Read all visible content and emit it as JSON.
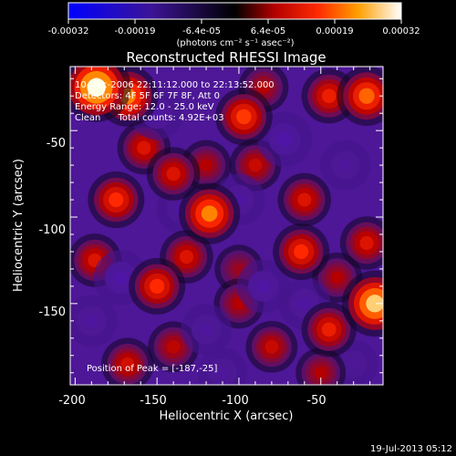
{
  "colorbar": {
    "tick_labels": [
      "-0.00032",
      "-0.00019",
      "-6.4e-05",
      "6.4e-05",
      "0.00019",
      "0.00032"
    ],
    "unit_label": "(photons cm⁻² s⁻¹ asec⁻²)",
    "range": [
      -0.00032,
      0.00032
    ]
  },
  "chart_data": {
    "type": "heatmap",
    "title": "Reconstructed RHESSI Image",
    "xlabel": "Heliocentric X (arcsec)",
    "ylabel": "Heliocentric Y (arcsec)",
    "xlim": [
      -203,
      -12
    ],
    "ylim": [
      -197,
      -13
    ],
    "x_ticks": [
      -200,
      -150,
      -100,
      -50
    ],
    "y_ticks": [
      -150,
      -100,
      -50
    ],
    "annotations": [
      "10-Dec-2006 22:11:12.000 to 22:13:52.000",
      "Detectors: 4F 5F 6F 7F 8F, Att 0",
      "Energy Range: 12.0 - 25.0 keV",
      "Clean      Total counts: 4.92E+03"
    ],
    "peak_label": "Position of Peak = [-187,-25]",
    "peak": [
      -187,
      -25
    ],
    "blobs": [
      {
        "x": -187,
        "y": -25,
        "v": 0.00032
      },
      {
        "x": -168,
        "y": -30,
        "v": 0.00022
      },
      {
        "x": -158,
        "y": -60,
        "v": 0.00012
      },
      {
        "x": -175,
        "y": -90,
        "v": 0.00016
      },
      {
        "x": -140,
        "y": -75,
        "v": 0.00012
      },
      {
        "x": -120,
        "y": -70,
        "v": 8e-05
      },
      {
        "x": -97,
        "y": -42,
        "v": 0.00017
      },
      {
        "x": -90,
        "y": -70,
        "v": 0.0001
      },
      {
        "x": -45,
        "y": -30,
        "v": 0.00014
      },
      {
        "x": -22,
        "y": -30,
        "v": 0.0002
      },
      {
        "x": -60,
        "y": -90,
        "v": 0.00012
      },
      {
        "x": -62,
        "y": -120,
        "v": 0.00016
      },
      {
        "x": -40,
        "y": -135,
        "v": 8e-05
      },
      {
        "x": -118,
        "y": -98,
        "v": 0.00022
      },
      {
        "x": -132,
        "y": -123,
        "v": 0.00012
      },
      {
        "x": -188,
        "y": -125,
        "v": 0.00012
      },
      {
        "x": -150,
        "y": -140,
        "v": 0.00016
      },
      {
        "x": -100,
        "y": -150,
        "v": 8e-05
      },
      {
        "x": -100,
        "y": -130,
        "v": 6e-05
      },
      {
        "x": -168,
        "y": -185,
        "v": 0.00011
      },
      {
        "x": -140,
        "y": -175,
        "v": 9e-05
      },
      {
        "x": -80,
        "y": -175,
        "v": 0.0001
      },
      {
        "x": -45,
        "y": -165,
        "v": 0.00014
      },
      {
        "x": -17,
        "y": -150,
        "v": 0.00028
      },
      {
        "x": -22,
        "y": -115,
        "v": 0.00012
      },
      {
        "x": -50,
        "y": -190,
        "v": 8e-05
      },
      {
        "x": -85,
        "y": -25,
        "v": 8e-05
      },
      {
        "x": -150,
        "y": -40,
        "v": -0.00012
      },
      {
        "x": -72,
        "y": -55,
        "v": -0.00014
      },
      {
        "x": -100,
        "y": -90,
        "v": -0.0001
      },
      {
        "x": -135,
        "y": -95,
        "v": -9e-05
      },
      {
        "x": -172,
        "y": -135,
        "v": -0.00014
      },
      {
        "x": -85,
        "y": -140,
        "v": -0.00012
      },
      {
        "x": -120,
        "y": -165,
        "v": -9e-05
      },
      {
        "x": -60,
        "y": -150,
        "v": -0.0001
      },
      {
        "x": -35,
        "y": -70,
        "v": -8e-05
      },
      {
        "x": -190,
        "y": -160,
        "v": -0.0001
      },
      {
        "x": -110,
        "y": -190,
        "v": -8e-05
      },
      {
        "x": -30,
        "y": -185,
        "v": -6e-05
      }
    ]
  },
  "footer": {
    "timestamp": "19-Jul-2013 05:12"
  }
}
